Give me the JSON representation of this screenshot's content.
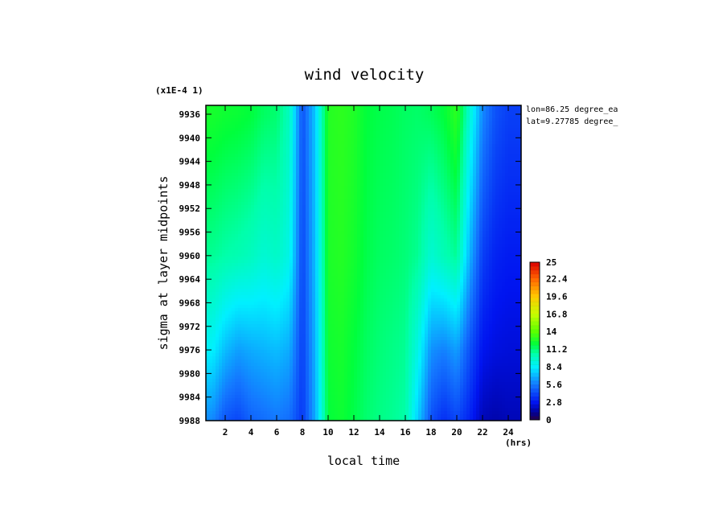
{
  "chart_data": {
    "type": "heatmap",
    "title": "wind velocity",
    "xlabel": "local time",
    "x_unit": "(hrs)",
    "ylabel": "sigma at layer midpoints",
    "y_multiplier_label": "(x1E-4 1)",
    "annotations": [
      "lon=86.25 degree_ea",
      "lat=9.27785 degree_"
    ],
    "x_ticks": [
      2,
      4,
      6,
      8,
      10,
      12,
      14,
      16,
      18,
      20,
      22,
      24
    ],
    "x_tick_labels": [
      "2",
      "4",
      "6",
      "8",
      "10",
      "12",
      "14",
      "16",
      "18",
      "20",
      "22",
      "24"
    ],
    "xlim": [
      0.5,
      25
    ],
    "y_ticks": [
      9936,
      9940,
      9944,
      9948,
      9952,
      9956,
      9960,
      9964,
      9968,
      9972,
      9976,
      9980,
      9984,
      9988
    ],
    "y_tick_labels": [
      "9936",
      "9940",
      "9944",
      "9948",
      "9952",
      "9956",
      "9960",
      "9964",
      "9968",
      "9972",
      "9976",
      "9980",
      "9984",
      "9988"
    ],
    "ylim": [
      9934.5,
      9988
    ],
    "y_inverted": true,
    "colorbar": {
      "range": [
        0,
        25
      ],
      "ticks": [
        0,
        2.8,
        5.6,
        8.4,
        11.2,
        14,
        16.8,
        19.6,
        22.4,
        25
      ],
      "tick_labels": [
        "0",
        "2.8",
        "5.6",
        "8.4",
        "11.2",
        "14",
        "16.8",
        "19.6",
        "22.4",
        "25"
      ]
    },
    "grid": {
      "x": [
        1,
        2,
        3,
        4,
        5,
        6,
        7,
        8,
        9,
        10,
        11,
        12,
        13,
        14,
        15,
        16,
        17,
        18,
        19,
        20,
        21,
        22,
        23,
        24
      ],
      "y": [
        9936,
        9960,
        9976,
        9988
      ],
      "z": [
        [
          12.5,
          12.3,
          12.2,
          12.0,
          11.5,
          11.3,
          10.0,
          4.5,
          7.5,
          12.8,
          13.0,
          12.7,
          12.0,
          11.8,
          11.7,
          11.5,
          11.4,
          11.6,
          12.0,
          13.0,
          9.5,
          6.0,
          4.5,
          4.0
        ],
        [
          10.8,
          10.5,
          10.3,
          10.0,
          9.5,
          9.8,
          9.0,
          4.2,
          7.3,
          12.6,
          12.8,
          12.4,
          11.8,
          11.5,
          11.4,
          11.2,
          10.8,
          9.5,
          10.2,
          10.8,
          7.0,
          4.0,
          3.2,
          3.0
        ],
        [
          8.5,
          7.2,
          6.5,
          6.8,
          7.0,
          7.2,
          6.8,
          4.0,
          7.0,
          12.3,
          12.5,
          12.0,
          11.5,
          11.2,
          11.0,
          10.8,
          9.0,
          6.2,
          5.8,
          6.5,
          4.5,
          2.8,
          2.5,
          2.4
        ],
        [
          6.0,
          4.6,
          4.2,
          5.0,
          5.3,
          5.6,
          5.3,
          3.8,
          6.8,
          12.0,
          12.3,
          11.8,
          11.3,
          11.0,
          10.8,
          10.5,
          7.5,
          4.5,
          3.5,
          4.2,
          3.2,
          1.8,
          1.6,
          1.8
        ]
      ]
    }
  }
}
